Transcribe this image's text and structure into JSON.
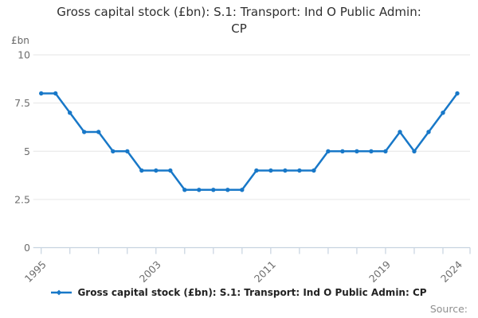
{
  "title": "Gross capital stock (£bn): S.1: Transport: Ind O Public Admin: CP",
  "y_unit_label": "£bn",
  "legend": {
    "label": "Gross capital stock (£bn): S.1: Transport: Ind O Public Admin: CP"
  },
  "source_label": "Source:",
  "colors": {
    "line": "#1878c8",
    "grid": "#e6e6e6",
    "axis": "#c7d3e0",
    "tick_label": "#6e6e6e",
    "title_text": "#303030",
    "legend_text": "#222222",
    "source_text": "#8f8f8f"
  },
  "chart_data": {
    "type": "line",
    "title": "Gross capital stock (£bn): S.1: Transport: Ind O Public Admin: CP",
    "series_name": "Gross capital stock (£bn): S.1: Transport: Ind O Public Admin: CP",
    "x": [
      1995,
      1996,
      1997,
      1998,
      1999,
      2000,
      2001,
      2002,
      2003,
      2004,
      2005,
      2006,
      2007,
      2008,
      2009,
      2010,
      2011,
      2012,
      2013,
      2014,
      2015,
      2016,
      2017,
      2018,
      2019,
      2020,
      2021,
      2022,
      2023,
      2024
    ],
    "values": [
      8,
      8,
      7,
      6,
      6,
      5,
      5,
      4,
      4,
      4,
      3,
      3,
      3,
      3,
      3,
      4,
      4,
      4,
      4,
      4,
      5,
      5,
      5,
      5,
      5,
      6,
      5,
      6,
      7,
      8
    ],
    "xlabel": "",
    "ylabel": "£bn",
    "ylim": [
      0,
      10
    ],
    "yticks": [
      0,
      2.5,
      5,
      7.5,
      10
    ],
    "xtick_interval": 2,
    "xtick_labels": [
      "1995",
      "2003",
      "2011",
      "2019",
      "2024"
    ],
    "grid": "horizontal",
    "legend_position": "bottom",
    "markers": true
  }
}
